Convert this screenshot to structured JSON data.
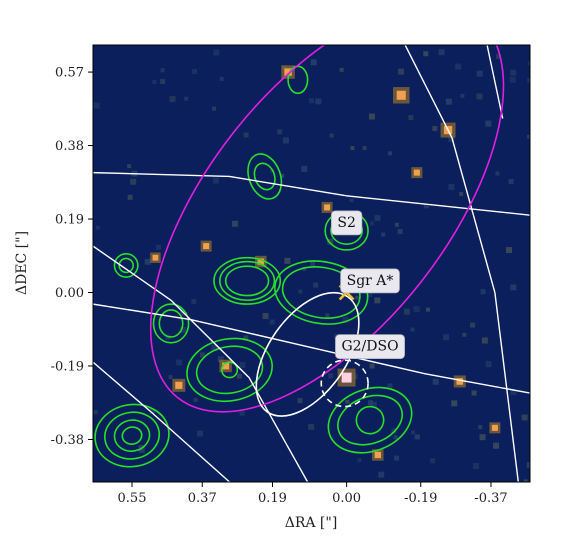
{
  "chart_data": {
    "type": "scatter",
    "title": "",
    "xlabel": "ΔRA [\"]",
    "ylabel": "ΔDEC [\"]",
    "xlim": [
      0.65,
      -0.47
    ],
    "ylim": [
      -0.49,
      0.64
    ],
    "x_ticks": [
      0.55,
      0.37,
      0.19,
      0.0,
      -0.19,
      -0.37
    ],
    "x_tick_labels": [
      "0.55",
      "0.37",
      "0.19",
      "0.00",
      "-0.19",
      "-0.37"
    ],
    "y_ticks": [
      0.57,
      0.38,
      0.19,
      0.0,
      -0.19,
      -0.38
    ],
    "y_tick_labels": [
      "0.57",
      "0.38",
      "0.19",
      "0.00",
      "-0.19",
      "-0.38"
    ],
    "background_color": "#0a1f5c",
    "grid": false,
    "markers": [
      {
        "name": "Sgr A*",
        "x": 0.0,
        "y": 0.0,
        "marker": "x",
        "color": "#f2c12e"
      }
    ],
    "annotations": [
      {
        "text": "S2",
        "x": 0.0,
        "y": 0.18
      },
      {
        "text": "Sgr A*",
        "x": -0.06,
        "y": 0.03
      },
      {
        "text": "G2/DSO",
        "x": -0.06,
        "y": -0.14
      }
    ],
    "bright_sources": [
      {
        "x": 0.0,
        "y": -0.22,
        "intensity": 1.0
      },
      {
        "x": -0.14,
        "y": 0.51,
        "intensity": 0.85
      },
      {
        "x": -0.26,
        "y": 0.42,
        "intensity": 0.7
      },
      {
        "x": 0.15,
        "y": 0.57,
        "intensity": 0.55
      },
      {
        "x": 0.43,
        "y": -0.24,
        "intensity": 0.5
      },
      {
        "x": 0.31,
        "y": -0.19,
        "intensity": 0.45
      },
      {
        "x": -0.29,
        "y": -0.23,
        "intensity": 0.4
      },
      {
        "x": -0.08,
        "y": -0.42,
        "intensity": 0.35
      },
      {
        "x": 0.22,
        "y": 0.08,
        "intensity": 0.35
      },
      {
        "x": 0.05,
        "y": 0.22,
        "intensity": 0.3
      },
      {
        "x": -0.38,
        "y": -0.35,
        "intensity": 0.3
      },
      {
        "x": 0.36,
        "y": 0.12,
        "intensity": 0.3
      },
      {
        "x": -0.18,
        "y": 0.31,
        "intensity": 0.3
      },
      {
        "x": 0.49,
        "y": 0.09,
        "intensity": 0.25
      }
    ],
    "ellipses": [
      {
        "role": "magenta-ellipse",
        "color": "#e020e0",
        "style": "solid",
        "cx": 0.05,
        "cy": 0.22,
        "rx": 0.62,
        "ry": 0.31,
        "angle_deg": -52
      },
      {
        "role": "white-ellipse-dso",
        "color": "#ffffff",
        "style": "solid",
        "cx": 0.1,
        "cy": -0.16,
        "rx": 0.18,
        "ry": 0.1,
        "angle_deg": -55
      },
      {
        "role": "white-dashed-circle",
        "color": "#ffffff",
        "style": "dashed",
        "cx": 0.005,
        "cy": -0.235,
        "rx": 0.06,
        "ry": 0.06,
        "angle_deg": 0
      }
    ],
    "white_lines": [
      {
        "role": "orbit-line-a",
        "points": [
          [
            0.65,
            0.31
          ],
          [
            0.3,
            0.3
          ],
          [
            0.0,
            0.25
          ],
          [
            -0.47,
            0.2
          ]
        ]
      },
      {
        "role": "orbit-line-b",
        "points": [
          [
            0.65,
            -0.03
          ],
          [
            0.4,
            -0.07
          ],
          [
            0.1,
            -0.14
          ],
          [
            -0.2,
            -0.21
          ],
          [
            -0.47,
            -0.26
          ]
        ]
      },
      {
        "role": "orbit-line-c",
        "points": [
          [
            0.65,
            0.12
          ],
          [
            0.45,
            -0.02
          ],
          [
            0.25,
            -0.22
          ],
          [
            0.1,
            -0.49
          ]
        ]
      },
      {
        "role": "orbit-line-d",
        "points": [
          [
            0.65,
            -0.18
          ],
          [
            0.5,
            -0.31
          ],
          [
            0.3,
            -0.49
          ]
        ]
      },
      {
        "role": "orbit-line-e",
        "points": [
          [
            -0.15,
            0.64
          ],
          [
            -0.27,
            0.4
          ],
          [
            -0.38,
            0.0
          ],
          [
            -0.44,
            -0.49
          ]
        ]
      },
      {
        "role": "orbit-line-f",
        "points": [
          [
            -0.36,
            0.64
          ],
          [
            -0.4,
            0.45
          ]
        ]
      }
    ],
    "contour_color": "#28e028",
    "contours": [
      {
        "cx": 0.55,
        "cy": -0.37,
        "rx": [
          0.095,
          0.07,
          0.045,
          0.025
        ],
        "ry": [
          0.08,
          0.06,
          0.04,
          0.022
        ],
        "angle_deg": -10
      },
      {
        "cx": 0.255,
        "cy": 0.03,
        "rx": [
          0.085,
          0.07,
          0.055
        ],
        "ry": [
          0.06,
          0.05,
          0.038
        ],
        "angle_deg": 0
      },
      {
        "cx": 0.0,
        "cy": 0.16,
        "rx": [
          0.055,
          0.04
        ],
        "ry": [
          0.05,
          0.035
        ],
        "angle_deg": 0
      },
      {
        "cx": 0.45,
        "cy": -0.08,
        "rx": [
          0.045,
          0.03
        ],
        "ry": [
          0.05,
          0.035
        ],
        "angle_deg": 0
      },
      {
        "cx": 0.565,
        "cy": 0.07,
        "rx": [
          0.03,
          0.018
        ],
        "ry": [
          0.03,
          0.018
        ],
        "angle_deg": 0
      },
      {
        "cx": 0.21,
        "cy": 0.3,
        "rx": [
          0.04,
          0.025
        ],
        "ry": [
          0.06,
          0.035
        ],
        "angle_deg": -20
      },
      {
        "cx": 0.125,
        "cy": 0.55,
        "rx": [
          0.025
        ],
        "ry": [
          0.035
        ],
        "angle_deg": 0
      },
      {
        "cx": 0.065,
        "cy": 0.0,
        "rx": [
          0.12,
          0.1
        ],
        "ry": [
          0.08,
          0.065
        ],
        "angle_deg": 10
      },
      {
        "cx": 0.3,
        "cy": -0.2,
        "rx": [
          0.11,
          0.085,
          0.02
        ],
        "ry": [
          0.08,
          0.06,
          0.02
        ],
        "angle_deg": -10
      },
      {
        "cx": -0.06,
        "cy": -0.33,
        "rx": [
          0.11,
          0.085,
          0.035
        ],
        "ry": [
          0.08,
          0.06,
          0.035
        ],
        "angle_deg": -20
      }
    ]
  }
}
